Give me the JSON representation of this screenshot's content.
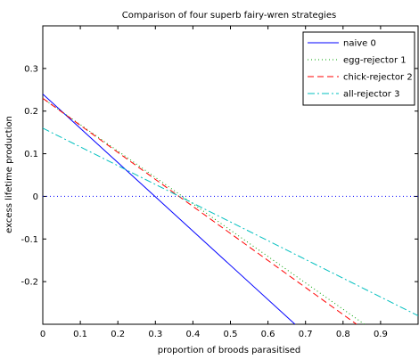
{
  "chart_data": {
    "type": "line",
    "title": "Comparison of four superb fairy-wren strategies",
    "xlabel": "proportion of broods parasitised",
    "ylabel": "excess lifetime production",
    "xlim": [
      0,
      1
    ],
    "ylim": [
      -0.3,
      0.4
    ],
    "xticks": [
      0,
      0.1,
      0.2,
      0.3,
      0.4,
      0.5,
      0.6,
      0.7,
      0.8,
      0.9
    ],
    "yticks": [
      -0.2,
      -0.1,
      0,
      0.1,
      0.2,
      0.3
    ],
    "xtick_labels": [
      "0",
      "0.1",
      "0.2",
      "0.3",
      "0.4",
      "0.5",
      "0.6",
      "0.7",
      "0.8",
      "0.9"
    ],
    "ytick_labels": [
      "-0.2",
      "-0.1",
      "0",
      "0.1",
      "0.2",
      "0.3"
    ],
    "legend_position": "top-right",
    "grid": false,
    "reference_line": {
      "y": 0,
      "style": "dotted",
      "color": "#0000ff"
    },
    "series": [
      {
        "name": "naive 0",
        "color": "#0000ff",
        "style": "solid",
        "x": [
          0,
          0.672
        ],
        "y": [
          0.24,
          -0.3
        ]
      },
      {
        "name": "egg-rejector 1",
        "color": "#00a000",
        "style": "dotted",
        "x": [
          0,
          0.857
        ],
        "y": [
          0.23,
          -0.3
        ]
      },
      {
        "name": "chick-rejector 2",
        "color": "#ff0000",
        "style": "dashed",
        "x": [
          0,
          0.836
        ],
        "y": [
          0.23,
          -0.3
        ]
      },
      {
        "name": "all-rejector 3",
        "color": "#00bfbf",
        "style": "dashdot",
        "x": [
          0,
          1.0
        ],
        "y": [
          0.16,
          -0.28
        ]
      }
    ]
  }
}
